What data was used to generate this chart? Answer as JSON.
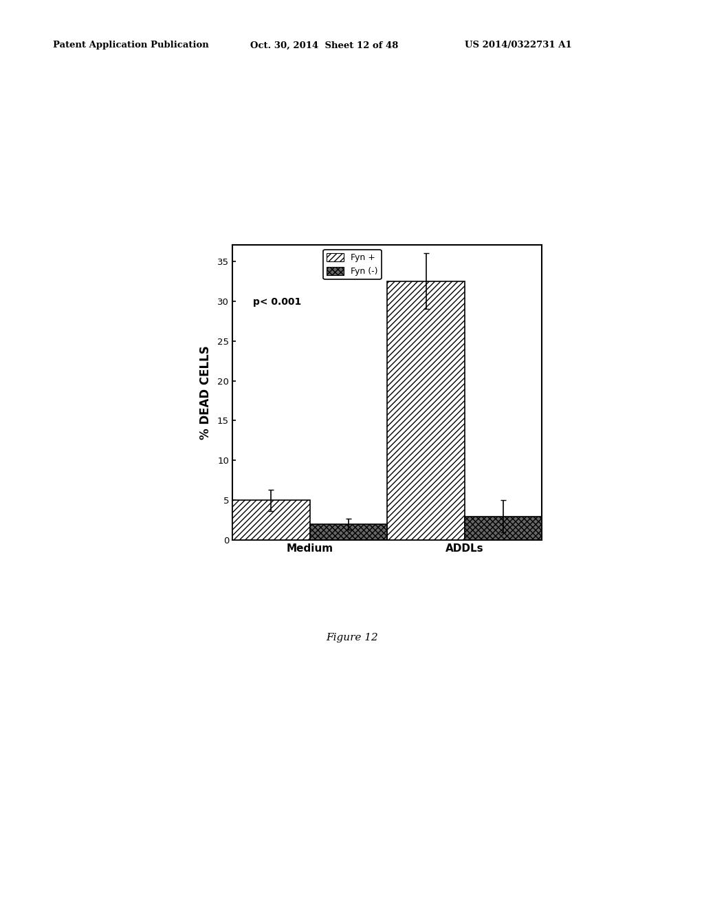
{
  "groups": [
    "Medium",
    "ADDLs"
  ],
  "fyn_plus_values": [
    5.0,
    32.5
  ],
  "fyn_minus_values": [
    2.0,
    3.0
  ],
  "fyn_plus_errors": [
    1.3,
    3.5
  ],
  "fyn_minus_errors": [
    0.7,
    2.0
  ],
  "ylabel": "% DEAD CELLS",
  "ylim": [
    0,
    37
  ],
  "yticks": [
    0,
    5,
    10,
    15,
    20,
    25,
    30,
    35
  ],
  "annotation": "p< 0.001",
  "legend_labels": [
    "Fyn +",
    "Fyn (-)"
  ],
  "fyn_plus_hatch": "////",
  "fyn_minus_hatch": "xxxx",
  "fyn_plus_color": "white",
  "fyn_minus_color": "#666666",
  "bar_edge_color": "black",
  "background_color": "white",
  "figure_caption": "Figure 12",
  "header_left": "Patent Application Publication",
  "header_mid": "Oct. 30, 2014  Sheet 12 of 48",
  "header_right": "US 2014/0322731 A1"
}
